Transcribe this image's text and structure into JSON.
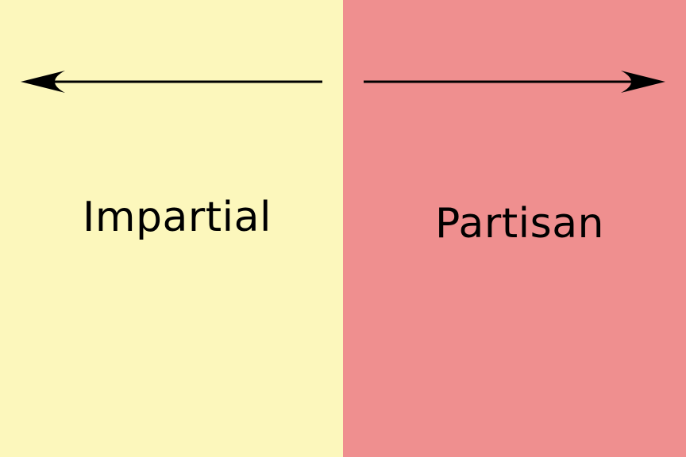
{
  "colors": {
    "left_panel_bg": "#fcf7bc",
    "right_panel_bg": "#ef8f8f",
    "arrow_stroke": "#000000",
    "text": "#000000"
  },
  "left_panel": {
    "label": "Impartial",
    "arrow_icon": "arrow-left-icon"
  },
  "right_panel": {
    "label": "Partisan",
    "arrow_icon": "arrow-right-icon"
  }
}
